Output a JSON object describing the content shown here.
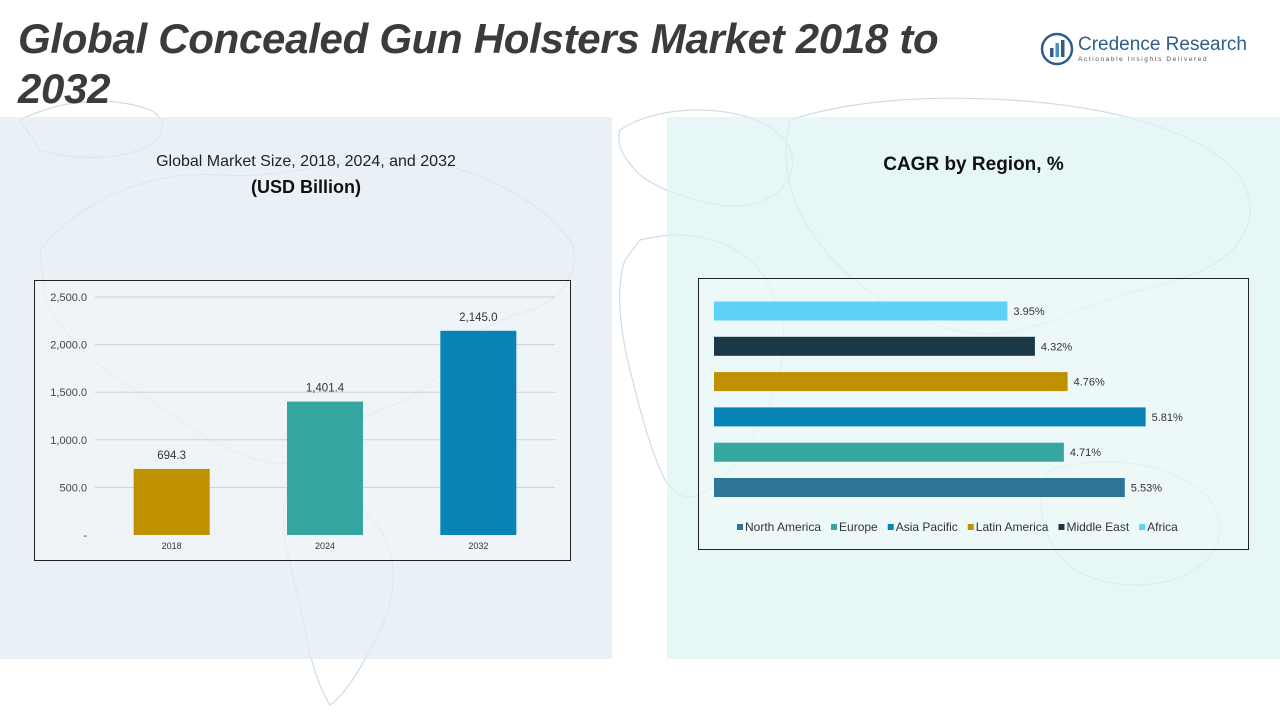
{
  "page": {
    "title": "Global Concealed Gun Holsters Market 2018 to 2032"
  },
  "brand": {
    "name": "Credence Research",
    "tagline": "Actionable Insights Delivered",
    "color": "#2f5d8a"
  },
  "left_panel": {
    "subtitle": "Global Market Size, 2018, 2024, and 2032",
    "unit": "(USD Billion)"
  },
  "right_panel": {
    "title": "CAGR by Region, %"
  },
  "chart_data": [
    {
      "type": "bar",
      "title": "Global Market Size, 2018, 2024, and 2032",
      "ylabel": "(USD Billion)",
      "categories": [
        "2018",
        "2024",
        "2032"
      ],
      "values": [
        694.3,
        1401.4,
        2145.0
      ],
      "value_labels": [
        "694.3",
        "1,401.4",
        "2,145.0"
      ],
      "colors": [
        "#bf9000",
        "#35a6a0",
        "#0784b5"
      ],
      "ylim": [
        0,
        2500
      ],
      "yticks": [
        0,
        500,
        1000,
        1500,
        2000,
        2500
      ],
      "ytick_labels": [
        "-",
        "500.0",
        "1,000.0",
        "1,500.0",
        "2,000.0",
        "2,500.0"
      ],
      "grid": true
    },
    {
      "type": "bar",
      "orientation": "horizontal",
      "title": "CAGR by Region, %",
      "categories": [
        "North America",
        "Europe",
        "Asia Pacific",
        "Latin America",
        "Middle East",
        "Africa"
      ],
      "values": [
        5.53,
        4.71,
        5.81,
        4.76,
        4.32,
        3.95
      ],
      "value_labels": [
        "5.53%",
        "4.71%",
        "5.81%",
        "4.76%",
        "4.32%",
        "3.95%"
      ],
      "colors": [
        "#2e7599",
        "#35a6a0",
        "#0784b5",
        "#bf9000",
        "#1b3848",
        "#5fd0f7"
      ],
      "xlim": [
        0,
        7
      ],
      "legend": "bottom",
      "grid": false
    }
  ]
}
